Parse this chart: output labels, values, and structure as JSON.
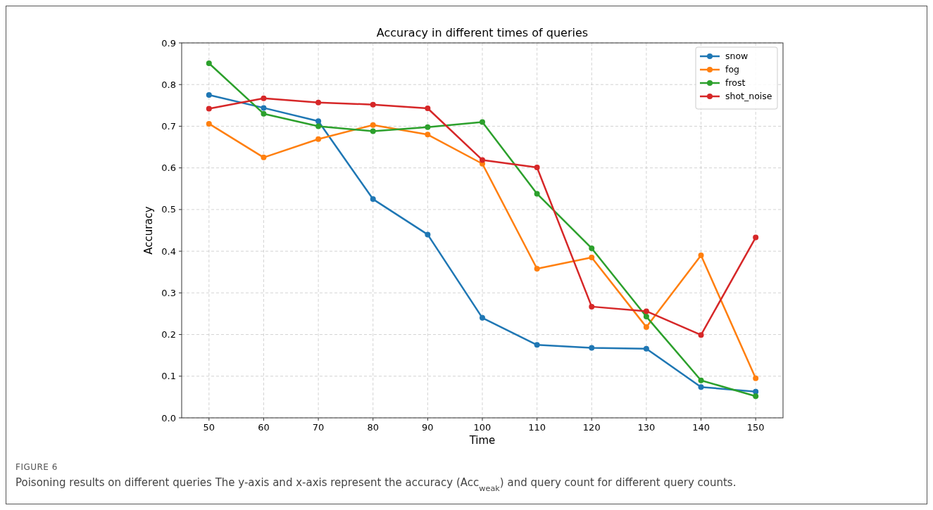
{
  "chart_data": {
    "type": "line",
    "title": "Accuracy in different times of queries",
    "xlabel": "Time",
    "ylabel": "Accuracy",
    "x": [
      50,
      60,
      70,
      80,
      90,
      100,
      110,
      120,
      130,
      140,
      150
    ],
    "series": [
      {
        "name": "snow",
        "color": "#1f77b4",
        "values": [
          0.775,
          0.744,
          0.712,
          0.525,
          0.44,
          0.24,
          0.175,
          0.168,
          0.166,
          0.074,
          0.063
        ]
      },
      {
        "name": "fog",
        "color": "#ff7f0e",
        "values": [
          0.706,
          0.625,
          0.669,
          0.703,
          0.68,
          0.61,
          0.358,
          0.385,
          0.218,
          0.39,
          0.095
        ]
      },
      {
        "name": "frost",
        "color": "#2ca02c",
        "values": [
          0.851,
          0.73,
          0.7,
          0.688,
          0.698,
          0.71,
          0.538,
          0.407,
          0.243,
          0.09,
          0.052
        ]
      },
      {
        "name": "shot_noise",
        "color": "#d62728",
        "values": [
          0.742,
          0.767,
          0.757,
          0.752,
          0.743,
          0.619,
          0.601,
          0.267,
          0.256,
          0.199,
          0.433
        ]
      }
    ],
    "xlim": [
      45,
      155
    ],
    "xticks": [
      50,
      60,
      70,
      80,
      90,
      100,
      110,
      120,
      130,
      140,
      150
    ],
    "ylim": [
      0,
      0.9
    ],
    "yticks": [
      {
        "value": 0,
        "label": "0.0"
      },
      {
        "value": 0.1,
        "label": "0.1"
      },
      {
        "value": 0.2,
        "label": "0.2"
      },
      {
        "value": 0.3,
        "label": "0.3"
      },
      {
        "value": 0.4,
        "label": "0.4"
      },
      {
        "value": 0.5,
        "label": "0.5"
      },
      {
        "value": 0.6,
        "label": "0.6"
      },
      {
        "value": 0.7,
        "label": "0.7"
      },
      {
        "value": 0.8,
        "label": "0.8"
      },
      {
        "value": 0.9,
        "label": "0.9"
      }
    ],
    "grid": true,
    "legend": "top right",
    "marker": "circle",
    "line_style": "solid",
    "annotations": [
      "FIGURE 6",
      "Poisoning results on different queries The y-axis and x-axis represent the accuracy (Acc$_{weak}$) and query count for different query counts."
    ]
  }
}
